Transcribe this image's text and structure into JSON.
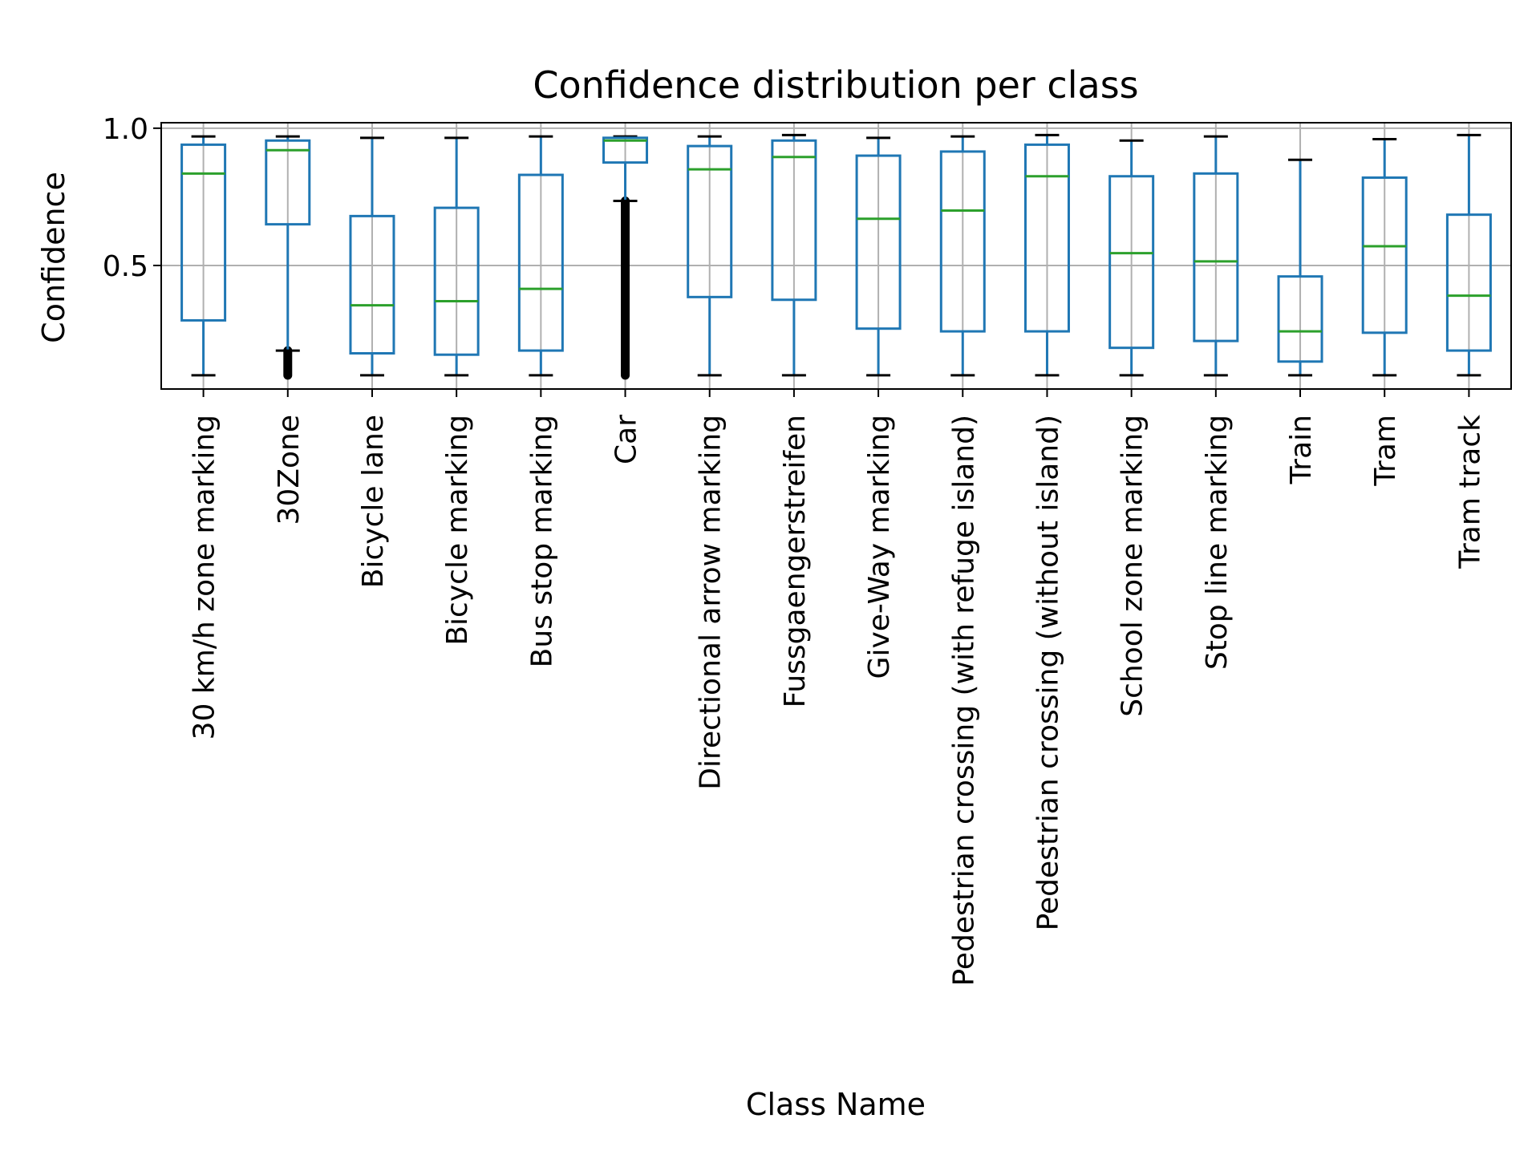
{
  "chart_data": {
    "type": "box",
    "title": "Confidence distribution per class",
    "xlabel": "Class Name",
    "ylabel": "Confidence",
    "ylim": [
      0.05,
      1.02
    ],
    "yticks": [
      0.5,
      1.0
    ],
    "ytick_labels": [
      "0.5",
      "1.0"
    ],
    "grid": true,
    "categories": [
      "30 km/h zone marking",
      "30Zone",
      "Bicycle lane",
      "Bicycle marking",
      "Bus stop marking",
      "Car",
      "Directional arrow marking",
      "Fussgaengerstreifen",
      "Give-Way marking",
      "Pedestrian crossing (with refuge island)",
      "Pedestrian crossing (without island)",
      "School zone marking",
      "Stop line marking",
      "Train",
      "Tram",
      "Tram track"
    ],
    "boxes": [
      {
        "whisker_low": 0.1,
        "q1": 0.3,
        "median": 0.835,
        "q3": 0.94,
        "whisker_high": 0.97
      },
      {
        "whisker_low": 0.19,
        "q1": 0.65,
        "median": 0.92,
        "q3": 0.955,
        "whisker_high": 0.97,
        "outliers_range": [
          0.1,
          0.19
        ]
      },
      {
        "whisker_low": 0.1,
        "q1": 0.18,
        "median": 0.355,
        "q3": 0.68,
        "whisker_high": 0.965
      },
      {
        "whisker_low": 0.1,
        "q1": 0.175,
        "median": 0.37,
        "q3": 0.71,
        "whisker_high": 0.965
      },
      {
        "whisker_low": 0.1,
        "q1": 0.19,
        "median": 0.415,
        "q3": 0.83,
        "whisker_high": 0.97
      },
      {
        "whisker_low": 0.735,
        "q1": 0.875,
        "median": 0.955,
        "q3": 0.965,
        "whisker_high": 0.97,
        "outliers_range": [
          0.1,
          0.735
        ]
      },
      {
        "whisker_low": 0.1,
        "q1": 0.385,
        "median": 0.85,
        "q3": 0.935,
        "whisker_high": 0.97
      },
      {
        "whisker_low": 0.1,
        "q1": 0.375,
        "median": 0.895,
        "q3": 0.955,
        "whisker_high": 0.975
      },
      {
        "whisker_low": 0.1,
        "q1": 0.27,
        "median": 0.67,
        "q3": 0.9,
        "whisker_high": 0.965
      },
      {
        "whisker_low": 0.1,
        "q1": 0.26,
        "median": 0.7,
        "q3": 0.915,
        "whisker_high": 0.97
      },
      {
        "whisker_low": 0.1,
        "q1": 0.26,
        "median": 0.825,
        "q3": 0.94,
        "whisker_high": 0.975
      },
      {
        "whisker_low": 0.1,
        "q1": 0.2,
        "median": 0.545,
        "q3": 0.825,
        "whisker_high": 0.955
      },
      {
        "whisker_low": 0.1,
        "q1": 0.225,
        "median": 0.515,
        "q3": 0.835,
        "whisker_high": 0.97
      },
      {
        "whisker_low": 0.1,
        "q1": 0.15,
        "median": 0.26,
        "q3": 0.46,
        "whisker_high": 0.885
      },
      {
        "whisker_low": 0.1,
        "q1": 0.255,
        "median": 0.57,
        "q3": 0.82,
        "whisker_high": 0.96
      },
      {
        "whisker_low": 0.1,
        "q1": 0.19,
        "median": 0.39,
        "q3": 0.685,
        "whisker_high": 0.975
      }
    ],
    "colors": {
      "box": "#1f77b4",
      "median": "#2ca02c",
      "caps": "#000000",
      "outliers": "#000000",
      "grid": "#b0b0b0",
      "axes": "#000000"
    }
  }
}
